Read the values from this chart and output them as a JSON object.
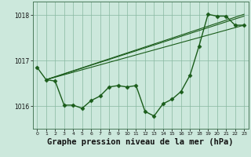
{
  "bg_color": "#cce8dc",
  "grid_color": "#88b8a0",
  "line_color": "#1a5c1a",
  "marker_color": "#1a5c1a",
  "xlabel": "Graphe pression niveau de la mer (hPa)",
  "xlabel_fontsize": 7.5,
  "xlim": [
    -0.5,
    23.5
  ],
  "ylim": [
    1015.5,
    1018.3
  ],
  "yticks": [
    1016,
    1017,
    1018
  ],
  "xticks": [
    0,
    1,
    2,
    3,
    4,
    5,
    6,
    7,
    8,
    9,
    10,
    11,
    12,
    13,
    14,
    15,
    16,
    17,
    18,
    19,
    20,
    21,
    22,
    23
  ],
  "main_series_x": [
    0,
    1,
    2,
    3,
    4,
    5,
    6,
    7,
    8,
    9,
    10,
    11,
    12,
    13,
    14,
    15,
    16,
    17,
    18,
    19,
    20,
    21,
    22,
    23
  ],
  "main_series_y": [
    1016.85,
    1016.58,
    1016.55,
    1016.02,
    1016.02,
    1015.95,
    1016.12,
    1016.22,
    1016.42,
    1016.45,
    1016.42,
    1016.45,
    1015.88,
    1015.78,
    1016.05,
    1016.15,
    1016.32,
    1016.68,
    1017.32,
    1018.02,
    1017.98,
    1017.98,
    1017.78,
    1017.78
  ],
  "trend_lines": [
    {
      "x0": 1,
      "y0": 1016.58,
      "x1": 23,
      "y1": 1017.78
    },
    {
      "x0": 1,
      "y0": 1016.58,
      "x1": 23,
      "y1": 1017.98
    },
    {
      "x0": 1,
      "y0": 1016.58,
      "x1": 23,
      "y1": 1018.02
    }
  ]
}
